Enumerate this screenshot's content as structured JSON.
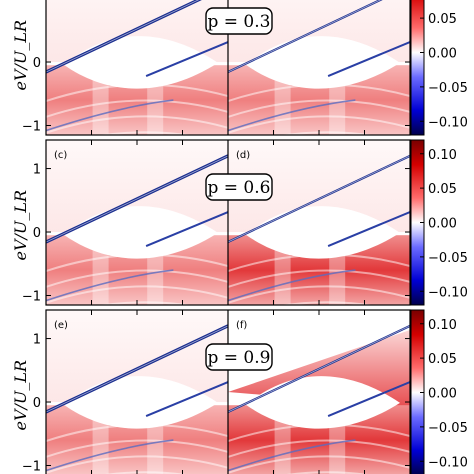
{
  "chart_data": {
    "type": "heatmap",
    "ylabel": "eV/U_LR",
    "ytick_labels": [
      "1",
      "0",
      "−1"
    ],
    "yticks": [
      1,
      0,
      -1
    ],
    "ylim": [
      -1.15,
      1.45
    ],
    "colorbar": {
      "colormap": "seismic",
      "ticks": [
        0.1,
        0.05,
        0.0,
        -0.05,
        -0.1
      ],
      "tick_labels": [
        "0.10",
        "0.05",
        "0.00",
        "−0.05",
        "−0.10"
      ],
      "range": [
        -0.12,
        0.12
      ]
    },
    "rows": [
      {
        "p_label": "p = 0.3",
        "panels": [
          "",
          ""
        ]
      },
      {
        "p_label": "p = 0.6",
        "panels": [
          "(c)",
          "(d)"
        ]
      },
      {
        "p_label": "p = 0.9",
        "panels": [
          "(e)",
          "(f)"
        ]
      }
    ]
  },
  "colors": {
    "red": "#e8262a",
    "blue": "#1b2e8f",
    "white": "#ffffff"
  }
}
